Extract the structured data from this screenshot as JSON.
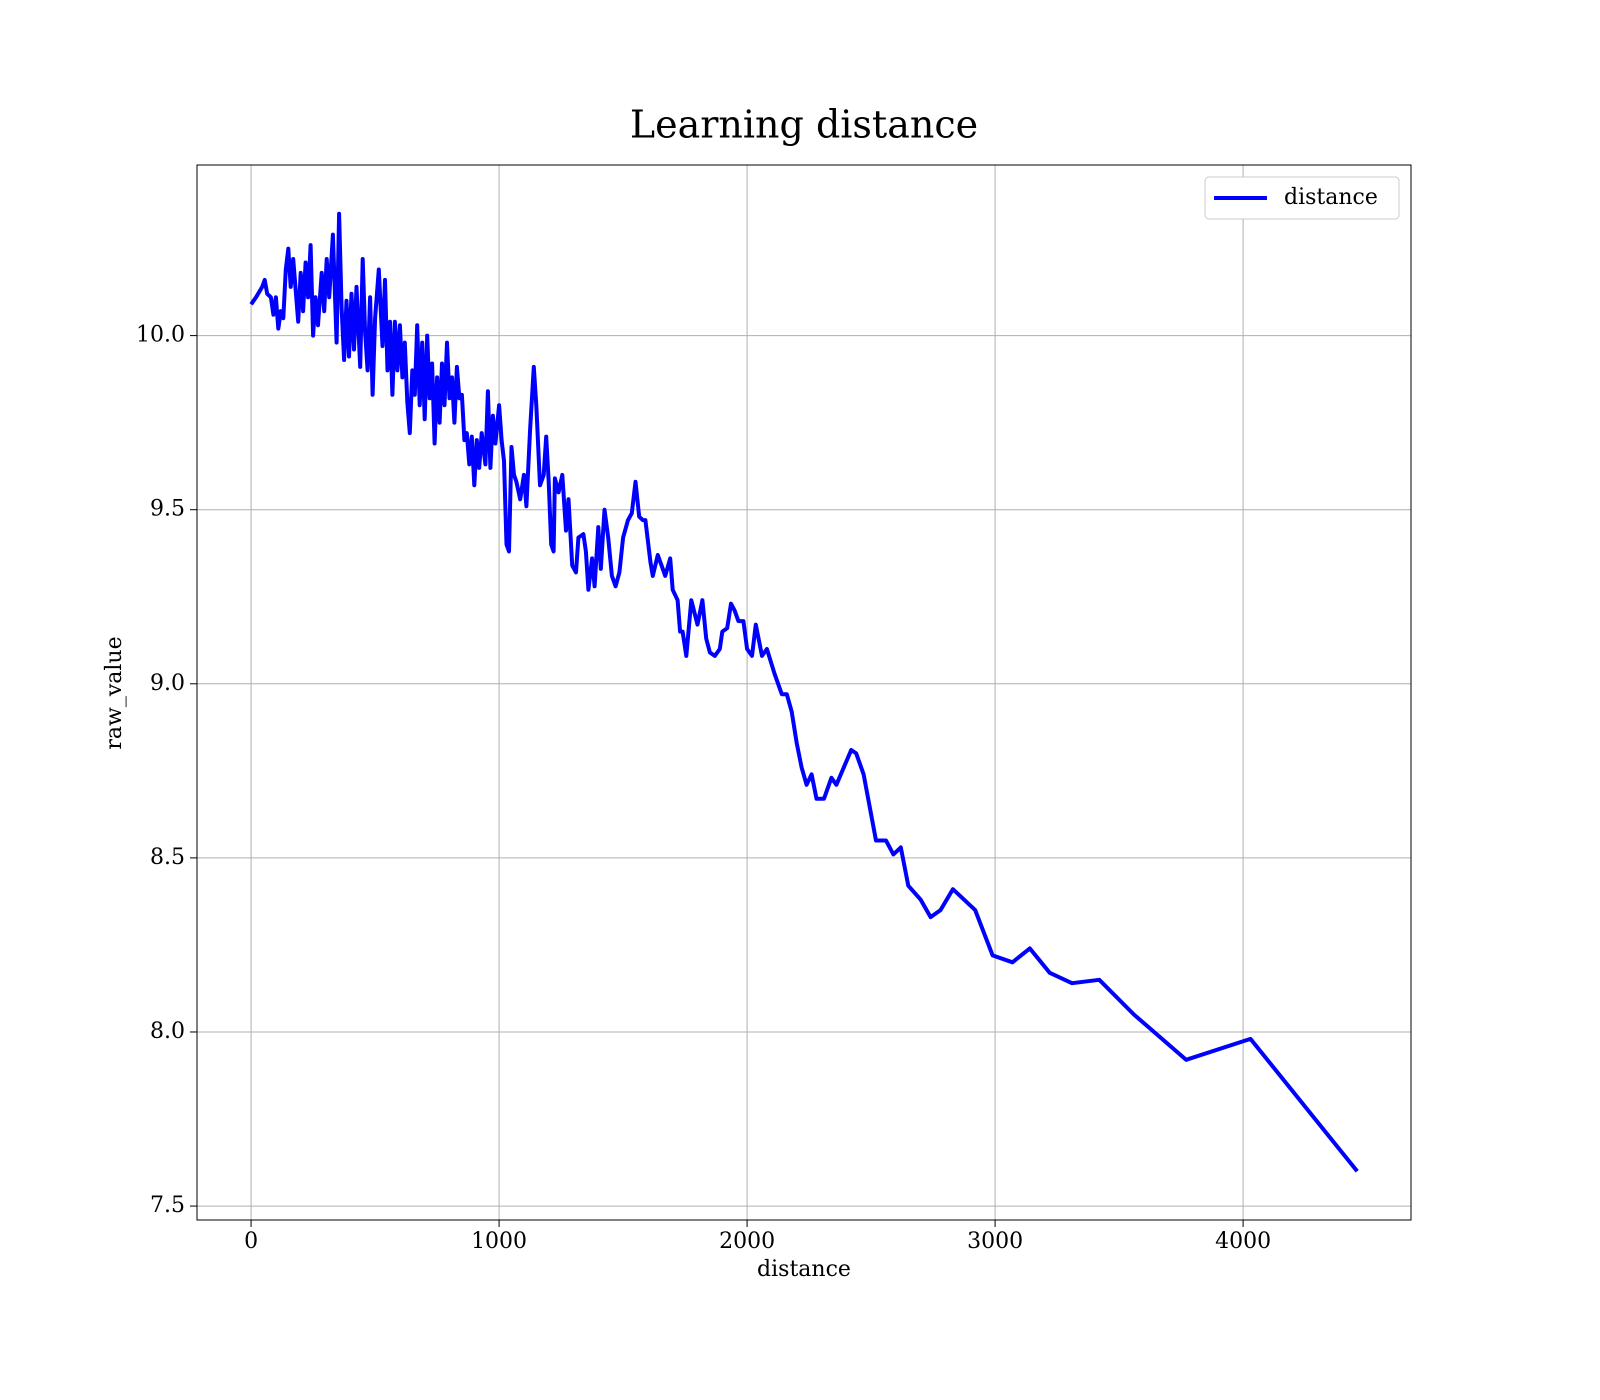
{
  "chart_data": {
    "type": "line",
    "title": "Learning distance",
    "x_label": "distance",
    "y_label": "raw_value",
    "x": [
      0,
      20,
      45,
      55,
      65,
      80,
      90,
      100,
      110,
      120,
      130,
      140,
      150,
      160,
      170,
      180,
      190,
      200,
      210,
      220,
      230,
      240,
      250,
      260,
      270,
      285,
      295,
      305,
      315,
      330,
      345,
      355,
      365,
      375,
      385,
      395,
      405,
      415,
      425,
      440,
      450,
      460,
      470,
      480,
      490,
      500,
      515,
      530,
      540,
      550,
      560,
      570,
      580,
      590,
      600,
      610,
      620,
      630,
      640,
      650,
      660,
      670,
      680,
      690,
      700,
      710,
      720,
      730,
      740,
      750,
      760,
      770,
      780,
      790,
      800,
      810,
      820,
      830,
      840,
      850,
      860,
      870,
      880,
      890,
      900,
      910,
      920,
      930,
      945,
      955,
      965,
      975,
      985,
      1000,
      1010,
      1020,
      1030,
      1040,
      1050,
      1060,
      1070,
      1085,
      1100,
      1110,
      1125,
      1140,
      1150,
      1165,
      1180,
      1190,
      1200,
      1210,
      1220,
      1225,
      1240,
      1255,
      1270,
      1280,
      1295,
      1310,
      1320,
      1340,
      1350,
      1360,
      1375,
      1385,
      1400,
      1410,
      1425,
      1440,
      1455,
      1470,
      1485,
      1500,
      1520,
      1535,
      1550,
      1565,
      1580,
      1590,
      1610,
      1620,
      1640,
      1660,
      1670,
      1690,
      1700,
      1720,
      1730,
      1740,
      1755,
      1775,
      1800,
      1820,
      1835,
      1850,
      1870,
      1890,
      1900,
      1920,
      1935,
      1950,
      1965,
      1985,
      2000,
      2020,
      2035,
      2060,
      2080,
      2110,
      2140,
      2160,
      2180,
      2200,
      2220,
      2240,
      2260,
      2280,
      2310,
      2340,
      2360,
      2420,
      2440,
      2470,
      2520,
      2560,
      2590,
      2620,
      2650,
      2700,
      2740,
      2780,
      2830,
      2920,
      2990,
      3070,
      3140,
      3220,
      3310,
      3420,
      3560,
      3770,
      4030,
      4460
    ],
    "series": [
      {
        "name": "distance",
        "color": "#0000ff",
        "values": [
          10.09,
          10.11,
          10.14,
          10.16,
          10.12,
          10.11,
          10.06,
          10.11,
          10.02,
          10.07,
          10.05,
          10.19,
          10.25,
          10.14,
          10.22,
          10.13,
          10.04,
          10.18,
          10.07,
          10.21,
          10.11,
          10.26,
          10.0,
          10.11,
          10.03,
          10.18,
          10.07,
          10.22,
          10.11,
          10.29,
          9.98,
          10.35,
          10.08,
          9.93,
          10.1,
          9.94,
          10.12,
          9.96,
          10.14,
          9.91,
          10.22,
          10.01,
          9.9,
          10.11,
          9.83,
          10.05,
          10.19,
          9.97,
          10.16,
          9.9,
          10.04,
          9.83,
          10.04,
          9.9,
          10.03,
          9.88,
          9.98,
          9.81,
          9.72,
          9.9,
          9.83,
          10.03,
          9.8,
          9.98,
          9.76,
          10.0,
          9.82,
          9.92,
          9.69,
          9.88,
          9.75,
          9.92,
          9.8,
          9.98,
          9.82,
          9.88,
          9.75,
          9.91,
          9.82,
          9.83,
          9.7,
          9.72,
          9.63,
          9.71,
          9.57,
          9.7,
          9.62,
          9.72,
          9.63,
          9.84,
          9.62,
          9.77,
          9.69,
          9.8,
          9.7,
          9.64,
          9.4,
          9.38,
          9.68,
          9.6,
          9.58,
          9.53,
          9.6,
          9.51,
          9.73,
          9.91,
          9.8,
          9.57,
          9.6,
          9.71,
          9.58,
          9.4,
          9.38,
          9.59,
          9.55,
          9.6,
          9.44,
          9.53,
          9.34,
          9.32,
          9.42,
          9.43,
          9.38,
          9.27,
          9.36,
          9.28,
          9.45,
          9.33,
          9.5,
          9.42,
          9.31,
          9.28,
          9.32,
          9.42,
          9.47,
          9.49,
          9.58,
          9.48,
          9.47,
          9.47,
          9.35,
          9.31,
          9.37,
          9.33,
          9.31,
          9.36,
          9.27,
          9.24,
          9.15,
          9.15,
          9.08,
          9.24,
          9.17,
          9.24,
          9.13,
          9.09,
          9.08,
          9.1,
          9.15,
          9.16,
          9.23,
          9.21,
          9.18,
          9.18,
          9.1,
          9.08,
          9.17,
          9.08,
          9.1,
          9.03,
          8.97,
          8.97,
          8.92,
          8.83,
          8.76,
          8.71,
          8.74,
          8.67,
          8.67,
          8.73,
          8.71,
          8.81,
          8.8,
          8.74,
          8.55,
          8.55,
          8.51,
          8.53,
          8.42,
          8.38,
          8.33,
          8.35,
          8.41,
          8.35,
          8.22,
          8.2,
          8.24,
          8.17,
          8.14,
          8.15,
          8.05,
          7.92,
          7.98,
          7.6
        ]
      }
    ],
    "xlim": [
      -218,
      4677
    ],
    "ylim": [
      7.46,
      10.49
    ],
    "xticks": [
      0,
      1000,
      2000,
      3000,
      4000
    ],
    "yticks": [
      7.5,
      {
        "value": 8,
        "label": "8.0"
      },
      8.5,
      {
        "value": 9,
        "label": "9.0"
      },
      9.5,
      {
        "value": 10,
        "label": "10.0"
      }
    ],
    "grid": true,
    "legend": "upper right"
  }
}
